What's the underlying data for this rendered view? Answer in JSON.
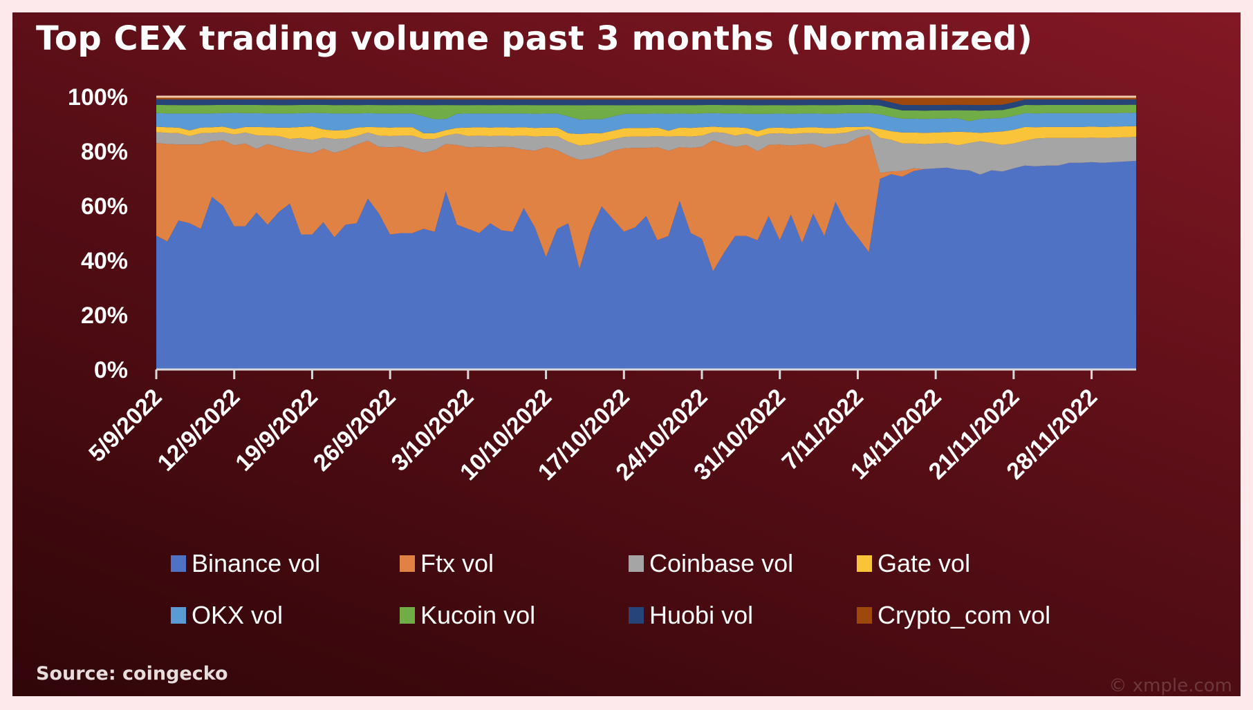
{
  "title": "Top CEX trading volume past 3 months (Normalized)",
  "source": "Source: coingecko",
  "watermark": "© xmple.com",
  "chart_data": {
    "type": "area",
    "stacked": true,
    "normalized": true,
    "title": "Top CEX trading volume past 3 months (Normalized)",
    "xlim": [
      "5/9/2022",
      "2/12/2022"
    ],
    "frequency": "daily",
    "ylim": [
      0,
      100
    ],
    "yticks": [
      "0%",
      "20%",
      "40%",
      "60%",
      "80%",
      "100%"
    ],
    "xticks": [
      "5/9/2022",
      "12/9/2022",
      "19/9/2022",
      "26/9/2022",
      "3/10/2022",
      "10/10/2022",
      "17/10/2022",
      "24/10/2022",
      "31/10/2022",
      "7/11/2022",
      "14/11/2022",
      "21/11/2022",
      "28/11/2022"
    ],
    "grid": false,
    "legend_position": "bottom",
    "series": [
      {
        "name": "Binance vol",
        "color": "#4f72c4",
        "values": [
          49,
          46,
          53,
          52,
          50,
          62,
          60,
          53,
          52,
          57,
          52,
          56,
          59,
          49,
          50,
          54,
          47,
          52,
          52,
          62,
          56,
          48,
          49,
          49,
          50,
          49,
          64,
          51,
          50,
          49,
          52,
          50,
          49,
          58,
          50,
          40,
          50,
          52,
          35,
          49,
          58,
          53,
          48,
          50,
          54,
          46,
          47,
          60,
          48,
          47,
          36,
          42,
          48,
          47,
          45,
          54,
          46,
          54,
          45,
          56,
          47,
          59,
          53,
          48,
          43,
          65,
          68,
          70,
          72,
          72,
          73,
          74,
          74,
          73,
          70,
          73,
          74,
          73,
          74,
          73,
          74,
          74,
          75,
          75,
          76,
          75,
          76,
          77,
          78
        ]
      },
      {
        "name": "Ftx vol",
        "color": "#e08244",
        "values": [
          34,
          35,
          27,
          28,
          30,
          20,
          24,
          30,
          30,
          23,
          29,
          23,
          19,
          30,
          30,
          27,
          30,
          27,
          28,
          21,
          24,
          31,
          31,
          30,
          27,
          29,
          17,
          28,
          29,
          31,
          27,
          30,
          30,
          21,
          27,
          39,
          28,
          24,
          38,
          26,
          18,
          24,
          29,
          28,
          24,
          33,
          30,
          19,
          30,
          33,
          48,
          39,
          32,
          32,
          31,
          25,
          34,
          24,
          35,
          25,
          31,
          20,
          29,
          36,
          43,
          2,
          1,
          2,
          1,
          0,
          0,
          0,
          0,
          0,
          0,
          0,
          0,
          0,
          0,
          0,
          0,
          0,
          0,
          0,
          0,
          0,
          0,
          0,
          0
        ]
      },
      {
        "name": "Coinbase vol",
        "color": "#a5a5a5",
        "values": [
          4,
          4,
          4,
          3,
          4,
          3,
          3,
          4,
          4,
          5,
          3,
          4,
          4,
          5,
          5,
          4,
          5,
          4,
          3,
          3,
          4,
          4,
          4,
          5,
          5,
          4,
          3,
          4,
          4,
          4,
          4,
          4,
          4,
          5,
          5,
          4,
          5,
          5,
          5,
          5,
          5,
          4,
          4,
          4,
          4,
          4,
          5,
          4,
          4,
          4,
          3,
          4,
          4,
          4,
          5,
          4,
          4,
          4,
          4,
          4,
          5,
          4,
          4,
          3,
          2,
          12,
          11,
          10,
          9,
          9,
          9,
          9,
          9,
          10,
          12,
          10,
          10,
          9,
          9,
          10,
          10,
          10,
          9,
          9,
          9,
          9,
          9,
          9,
          9
        ]
      },
      {
        "name": "Gate vol",
        "color": "#f9c33a",
        "values": [
          2,
          2,
          2,
          2,
          2,
          2,
          2,
          2,
          2,
          3,
          3,
          3,
          4,
          4,
          5,
          3,
          3,
          3,
          3,
          2,
          3,
          3,
          3,
          3,
          2,
          2,
          2,
          2,
          3,
          3,
          3,
          3,
          3,
          3,
          3,
          3,
          3,
          3,
          4,
          4,
          3,
          3,
          3,
          3,
          3,
          3,
          2,
          3,
          3,
          3,
          2,
          2,
          3,
          2,
          2,
          2,
          2,
          2,
          2,
          2,
          2,
          2,
          2,
          1,
          1,
          3,
          3,
          4,
          4,
          4,
          4,
          4,
          5,
          4,
          3,
          4,
          5,
          5,
          5,
          4,
          4,
          4,
          4,
          4,
          4,
          4,
          4,
          4,
          4
        ]
      },
      {
        "name": "OKX vol",
        "color": "#5b9bd5",
        "values": [
          5,
          5,
          5,
          6,
          5,
          5,
          5,
          6,
          5,
          5,
          5,
          5,
          5,
          5,
          5,
          6,
          6,
          6,
          5,
          5,
          5,
          5,
          5,
          5,
          6,
          5,
          4,
          5,
          5,
          5,
          5,
          5,
          5,
          5,
          5,
          5,
          5,
          6,
          5,
          5,
          5,
          5,
          5,
          5,
          5,
          5,
          6,
          5,
          5,
          5,
          5,
          5,
          5,
          5,
          6,
          5,
          5,
          5,
          5,
          5,
          5,
          5,
          5,
          5,
          5,
          5,
          5,
          5,
          5,
          5,
          5,
          5,
          5,
          4,
          5,
          5,
          5,
          5,
          5,
          5,
          5,
          5,
          5,
          5,
          5,
          5,
          5,
          5,
          5
        ]
      },
      {
        "name": "Kucoin vol",
        "color": "#70ad47",
        "values": [
          3,
          3,
          3,
          3,
          3,
          3,
          3,
          3,
          3,
          3,
          3,
          3,
          3,
          3,
          3,
          3,
          3,
          3,
          3,
          3,
          3,
          3,
          3,
          3,
          4,
          5,
          5,
          3,
          3,
          3,
          3,
          3,
          3,
          3,
          3,
          3,
          3,
          4,
          5,
          5,
          5,
          4,
          3,
          3,
          3,
          3,
          3,
          3,
          3,
          3,
          3,
          3,
          3,
          3,
          3,
          3,
          3,
          3,
          3,
          3,
          3,
          3,
          3,
          3,
          3,
          3,
          3,
          3,
          3,
          3,
          3,
          3,
          3,
          4,
          3,
          3,
          3,
          3,
          3,
          3,
          3,
          3,
          3,
          3,
          3,
          3,
          3,
          3,
          3
        ]
      },
      {
        "name": "Huobi vol",
        "color": "#264478",
        "values": [
          2,
          2,
          2,
          2,
          2,
          2,
          2,
          2,
          2,
          2,
          2,
          2,
          2,
          2,
          2,
          2,
          2,
          2,
          2,
          2,
          2,
          2,
          2,
          2,
          2,
          2,
          2,
          2,
          2,
          2,
          2,
          2,
          2,
          2,
          2,
          2,
          2,
          2,
          2,
          2,
          2,
          2,
          2,
          2,
          2,
          2,
          2,
          2,
          2,
          2,
          2,
          2,
          2,
          2,
          2,
          2,
          2,
          2,
          2,
          2,
          2,
          2,
          2,
          2,
          2,
          2,
          2,
          2,
          2,
          2,
          2,
          2,
          2,
          2,
          2,
          2,
          2,
          2,
          2,
          2,
          2,
          2,
          2,
          2,
          2,
          2,
          2,
          2,
          2
        ]
      },
      {
        "name": "Crypto_com vol",
        "color": "#9e480e",
        "values": [
          1,
          1,
          1,
          1,
          1,
          1,
          1,
          1,
          1,
          1,
          1,
          1,
          1,
          1,
          1,
          1,
          1,
          1,
          1,
          1,
          1,
          1,
          1,
          1,
          1,
          1,
          1,
          1,
          1,
          1,
          1,
          1,
          1,
          1,
          1,
          1,
          1,
          1,
          1,
          1,
          1,
          1,
          1,
          1,
          1,
          1,
          1,
          1,
          1,
          1,
          1,
          1,
          1,
          1,
          1,
          1,
          1,
          1,
          1,
          1,
          1,
          1,
          1,
          1,
          1,
          1,
          2,
          3,
          3,
          3,
          3,
          3,
          3,
          3,
          3,
          3,
          3,
          2,
          1,
          1,
          1,
          1,
          1,
          1,
          1,
          1,
          1,
          1,
          1
        ]
      }
    ]
  }
}
